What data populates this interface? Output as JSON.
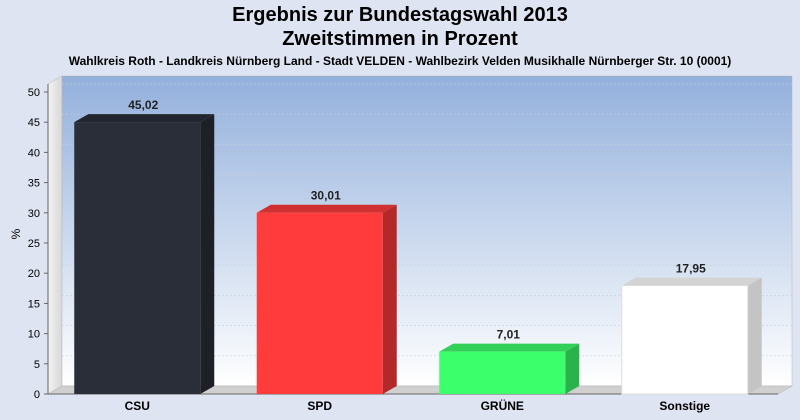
{
  "chart_data": {
    "type": "bar",
    "title": "Ergebnis zur Bundestagswahl 2013",
    "title2": "Zweitstimmen in Prozent",
    "subtitle": "Wahlkreis Roth - Landkreis Nürnberg Land - Stadt VELDEN - Wahlbezirk Velden Musikhalle Nürnberger Str. 10 (0001)",
    "ylabel": "%",
    "xlabel": "",
    "ylim": [
      0,
      50
    ],
    "yticks": [
      0,
      5,
      10,
      15,
      20,
      25,
      30,
      35,
      40,
      45,
      50
    ],
    "grid": true,
    "categories": [
      "CSU",
      "SPD",
      "GRÜNE",
      "Sonstige"
    ],
    "values": [
      45.02,
      30.01,
      7.01,
      17.95
    ],
    "value_labels": [
      "45,02",
      "30,01",
      "7,01",
      "17,95"
    ],
    "colors": [
      "#2a2e38",
      "#ff3b3b",
      "#3cff6c",
      "#ffffff"
    ]
  }
}
